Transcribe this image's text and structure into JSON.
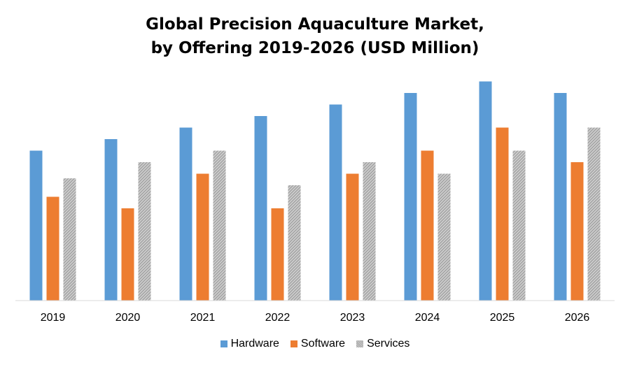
{
  "chart_data": {
    "type": "bar",
    "title": "Global Precision Aquaculture Market,",
    "subtitle": "by Offering 2019-2026 (USD Million)",
    "categories": [
      "2019",
      "2020",
      "2021",
      "2022",
      "2023",
      "2024",
      "2025",
      "2026"
    ],
    "series": [
      {
        "name": "Hardware",
        "color": "#5b9bd5",
        "values": [
          6.5,
          7.0,
          7.5,
          8.0,
          8.5,
          9.0,
          9.5,
          9.0
        ]
      },
      {
        "name": "Software",
        "color": "#ed7d31",
        "values": [
          4.5,
          4.0,
          5.5,
          4.0,
          5.5,
          6.5,
          7.5,
          6.0
        ]
      },
      {
        "name": "Services",
        "color": "#a5a5a5",
        "values": [
          5.3,
          6.0,
          6.5,
          5.0,
          6.0,
          5.5,
          6.5,
          7.5
        ]
      }
    ],
    "ylim": [
      0,
      10
    ],
    "xlabel": "",
    "ylabel": "",
    "grid": false,
    "legend": "bottom"
  }
}
